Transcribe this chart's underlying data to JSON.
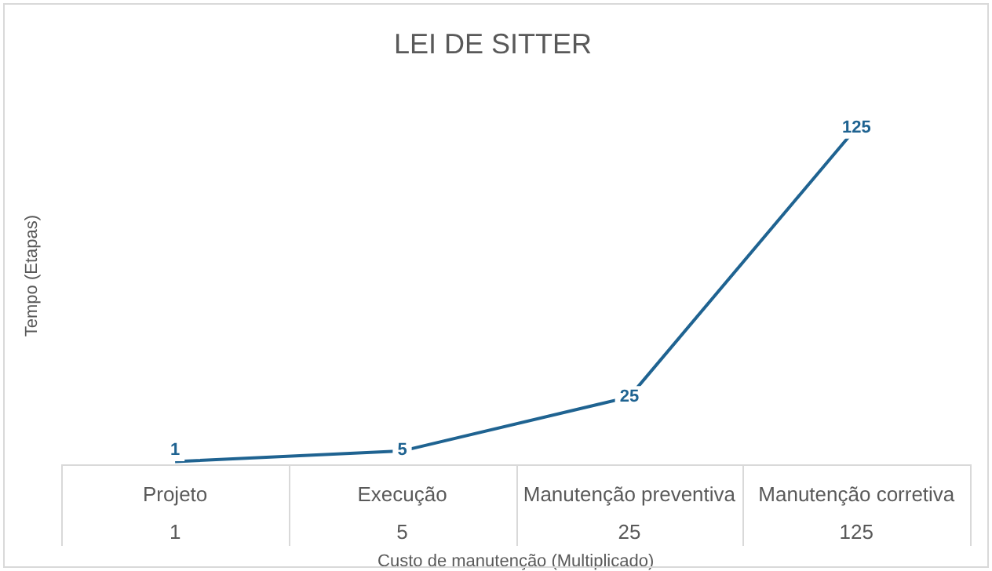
{
  "chart_data": {
    "type": "line",
    "title": "LEI DE SITTER",
    "xlabel": "Custo de manutenção (Multiplicado)",
    "ylabel": "Tempo (Etapas)",
    "categories": [
      "Projeto",
      "Execução",
      "Manutenção preventiva",
      "Manutenção corretiva"
    ],
    "series": [
      {
        "color": "#1f6391",
        "values": [
          1,
          5,
          25,
          125
        ]
      }
    ],
    "annotations": [
      "1",
      "5",
      "25",
      "125"
    ],
    "tick_labels": "x",
    "data_labels": true,
    "legend": false,
    "line_style": "solid"
  }
}
